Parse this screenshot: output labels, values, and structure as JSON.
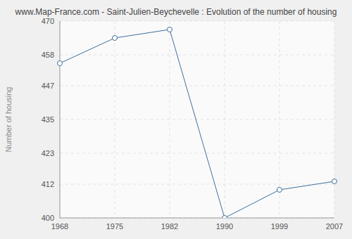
{
  "chart_data": {
    "type": "line",
    "title": "www.Map-France.com - Saint-Julien-Beychevelle : Evolution of the number of housing",
    "y_label": "Number of housing",
    "categories": [
      "1968",
      "1975",
      "1982",
      "1990",
      "1999",
      "2007"
    ],
    "values": [
      455,
      464,
      467,
      400,
      410,
      413
    ],
    "color": "#3e6e9e",
    "marker": "circle",
    "ylim": [
      400,
      470
    ],
    "yticks": [
      400,
      412,
      423,
      435,
      447,
      458,
      470
    ],
    "grid": true
  }
}
